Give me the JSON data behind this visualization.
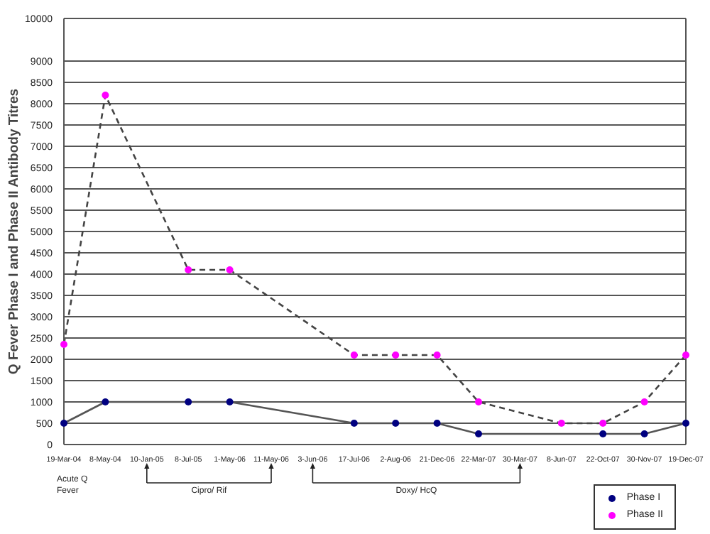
{
  "chart_data": {
    "type": "line",
    "ylabel": "Q Fever Phase I and Phase II Antibody Titres",
    "categories": [
      "19-Mar-04",
      "8-May-04",
      "10-Jan-05",
      "8-Jul-05",
      "1-May-06",
      "11-May-06",
      "3-Jun-06",
      "17-Jul-06",
      "2-Aug-06",
      "21-Dec-06",
      "22-Mar-07",
      "30-Mar-07",
      "8-Jun-07",
      "22-Oct-07",
      "30-Nov-07",
      "19-Dec-07"
    ],
    "series": [
      {
        "name": "Phase I",
        "color": "#000080",
        "line_style": "solid",
        "values": [
          500,
          1000,
          null,
          1000,
          1000,
          null,
          null,
          500,
          500,
          500,
          250,
          null,
          null,
          250,
          250,
          500
        ]
      },
      {
        "name": "Phase II",
        "color": "#ff00ff",
        "line_style": "dashed",
        "values": [
          2350,
          8200,
          null,
          4100,
          4100,
          null,
          null,
          2100,
          2100,
          2100,
          1000,
          null,
          500,
          500,
          1000,
          2100
        ]
      }
    ],
    "ylim": [
      0,
      10000
    ],
    "yticks": [
      0,
      500,
      1000,
      1500,
      2000,
      2500,
      3000,
      3500,
      4000,
      4500,
      5000,
      5500,
      6000,
      6500,
      7000,
      7500,
      8000,
      8500,
      9000,
      10000
    ],
    "grid": "y",
    "marker": "circle",
    "legend": "bottom right",
    "annotations": [
      "Acute Q Fever",
      "Cipro/ Rif",
      "Doxy/ HcQ"
    ]
  }
}
